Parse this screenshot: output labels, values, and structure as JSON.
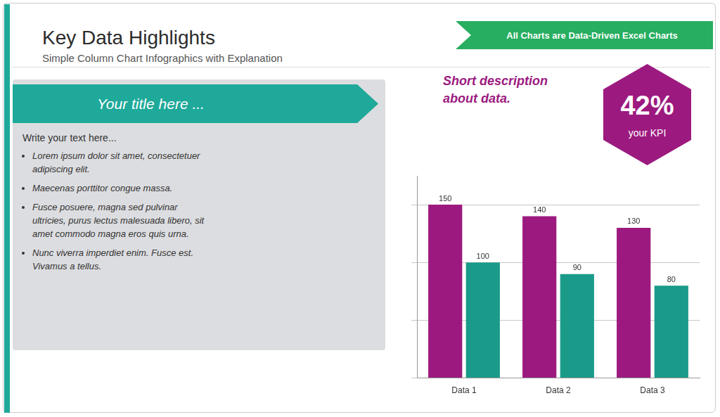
{
  "chart_data": {
    "type": "bar",
    "title": "Key Data Highlights",
    "subtitle": "Simple Column Chart Infographics with Explanation",
    "annotations": [
      "All Charts are Data-Driven Excel Charts",
      "Your title here ...",
      "Write your text here...",
      "Lorem ipsum dolor sit amet, consectetuer\nadipiscing elit.",
      "Maecenas porttitor congue massa.",
      "Fusce posuere, magna sed pulvinar\nultricies, purus lectus malesuada libero, sit\namet commodo magna eros quis urna.",
      "Nunc viverra imperdiet enim. Fusce est.\nVivamus a tellus.",
      "Short description\nabout data.",
      "42%",
      "your KPI"
    ],
    "categories": [
      "Data 1",
      "Data 2",
      "Data 3"
    ],
    "series": [
      {
        "color": "#9c1a7f",
        "values": [
          150,
          140,
          130
        ]
      },
      {
        "color": "#1a9b8a",
        "values": [
          100,
          90,
          80
        ]
      }
    ],
    "ylim": [
      0,
      175
    ],
    "yticks": [
      0,
      50,
      100,
      150
    ],
    "grid": true,
    "data_labels": true,
    "tick_labels": "x"
  }
}
